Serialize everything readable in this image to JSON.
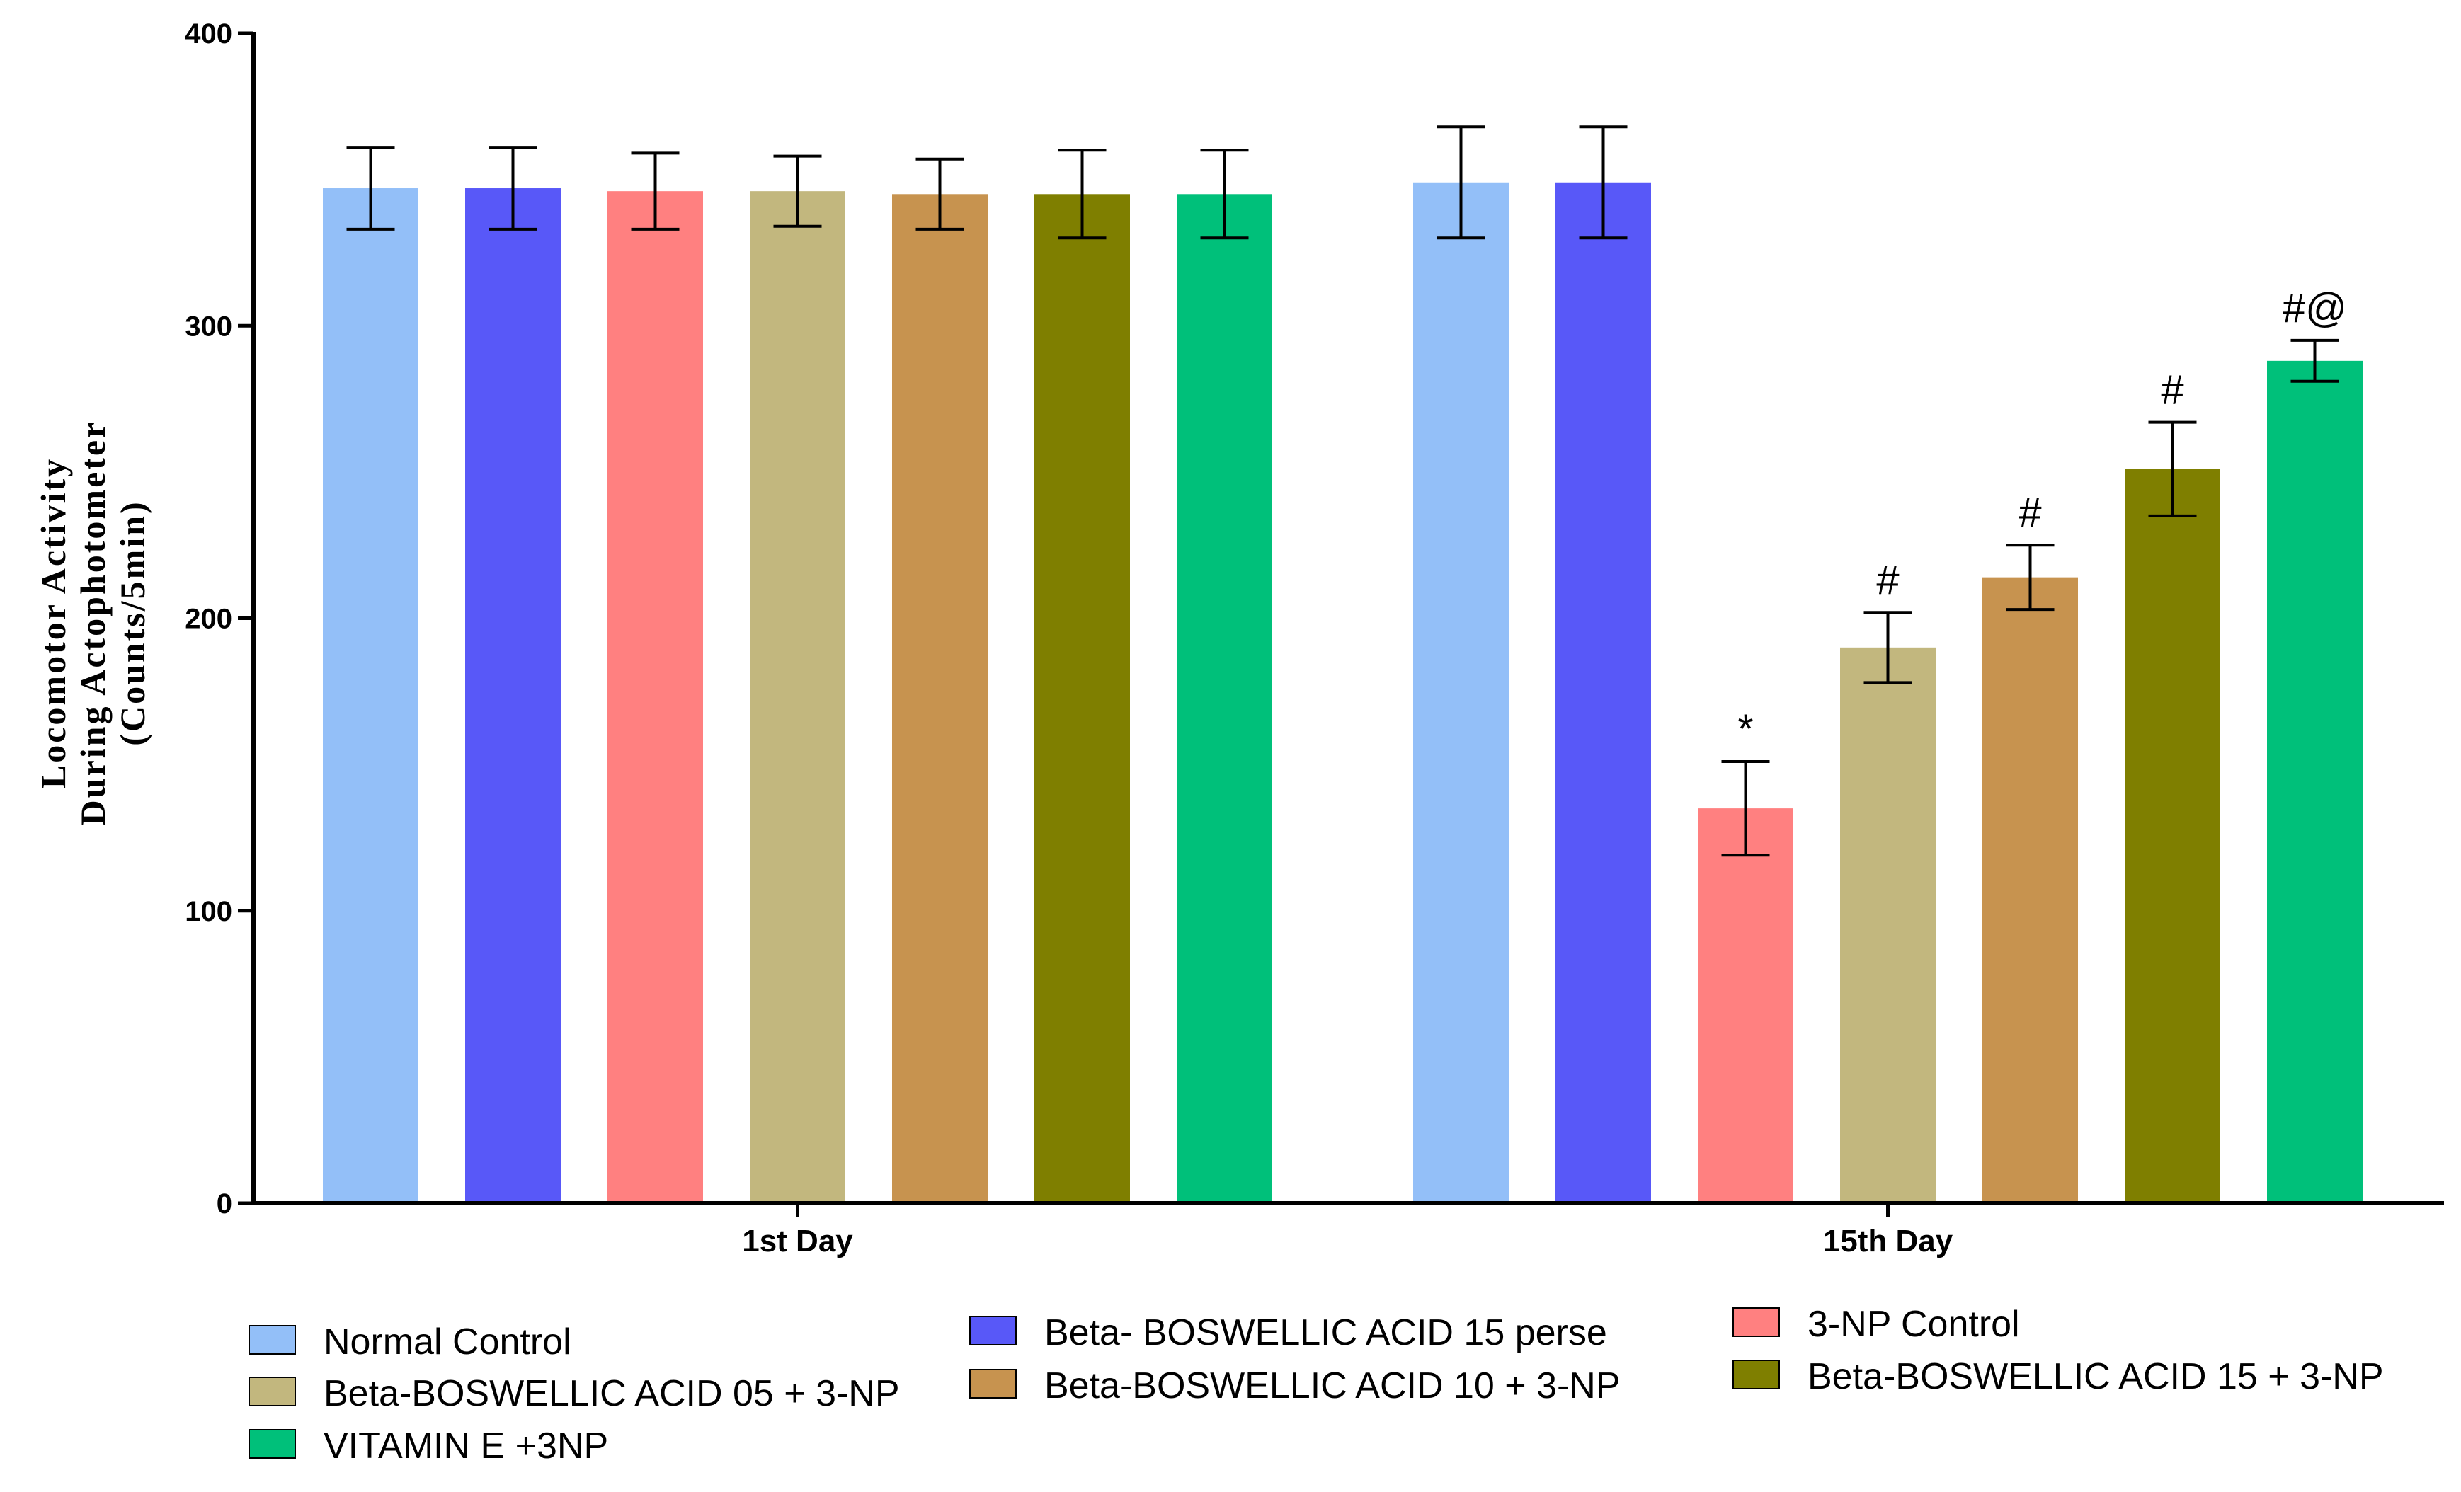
{
  "chart_data": {
    "type": "bar",
    "title": "",
    "xlabel": "",
    "ylabel": [
      "Locomotor Activity",
      "During Actophotometer",
      "(Counts/5min)"
    ],
    "ylim": [
      0,
      400
    ],
    "yticks": [
      0,
      100,
      200,
      300,
      400
    ],
    "grid": false,
    "legend_position": "bottom",
    "categories": [
      "1st Day",
      "15th Day"
    ],
    "series": [
      {
        "name": "Normal Control",
        "color": "#93BFF8",
        "values": [
          347,
          349
        ],
        "errors": [
          14,
          19
        ],
        "annotations": [
          "",
          ""
        ]
      },
      {
        "name": "Beta- BOSWELLIC ACID 15 perse",
        "color": "#5858F8",
        "values": [
          347,
          349
        ],
        "errors": [
          14,
          19
        ],
        "annotations": [
          "",
          ""
        ]
      },
      {
        "name": "3-NP Control",
        "color": "#FF8080",
        "values": [
          346,
          135
        ],
        "errors": [
          13,
          16
        ],
        "annotations": [
          "",
          "*"
        ]
      },
      {
        "name": "Beta-BOSWELLIC ACID 05 + 3-NP",
        "color": "#C2B77E",
        "values": [
          346,
          190
        ],
        "errors": [
          12,
          12
        ],
        "annotations": [
          "",
          "#"
        ]
      },
      {
        "name": "Beta-BOSWELLIC ACID 10 + 3-NP",
        "color": "#C7934F",
        "values": [
          345,
          214
        ],
        "errors": [
          12,
          11
        ],
        "annotations": [
          "",
          "#"
        ]
      },
      {
        "name": "Beta-BOSWELLIC ACID 15 + 3-NP",
        "color": "#7F7F00",
        "values": [
          345,
          251
        ],
        "errors": [
          15,
          16
        ],
        "annotations": [
          "",
          "#"
        ]
      },
      {
        "name": "VITAMIN E +3NP",
        "color": "#00C07A",
        "values": [
          345,
          288
        ],
        "errors": [
          15,
          7
        ],
        "annotations": [
          "",
          "#@"
        ]
      }
    ]
  }
}
